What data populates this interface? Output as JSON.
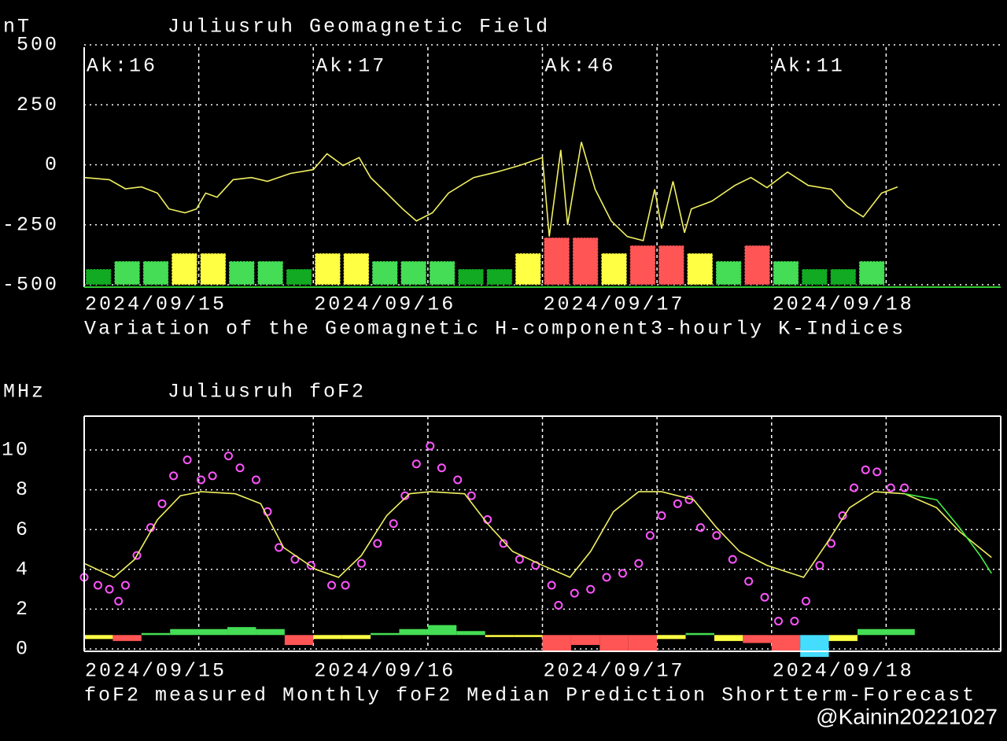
{
  "chart_data": [
    {
      "type": "line",
      "title": "Juliusruh Geomagnetic Field",
      "y_label": "nT",
      "annotations": [
        "Ak:16",
        "Ak:17",
        "Ak:46",
        "Ak:11"
      ],
      "xlim": [
        0,
        4
      ],
      "xticks": [
        {
          "value": 0,
          "label": "2024/09/15"
        },
        {
          "value": 1,
          "label": "2024/09/16"
        },
        {
          "value": 2,
          "label": "2024/09/17"
        },
        {
          "value": 3,
          "label": "2024/09/18"
        }
      ],
      "ylim": [
        -500,
        500
      ],
      "yticks": [
        -500,
        -250,
        0,
        250,
        500
      ],
      "grid": true,
      "series": [
        {
          "name": "Variation of the Geomagnetic H-component",
          "type": "line",
          "color": "#f0f060",
          "x": [
            0,
            0.11,
            0.18,
            0.25,
            0.32,
            0.37,
            0.44,
            0.49,
            0.53,
            0.58,
            0.65,
            0.73,
            0.8,
            0.9,
            1.0,
            1.06,
            1.13,
            1.2,
            1.25,
            1.32,
            1.39,
            1.45,
            1.52,
            1.59,
            1.7,
            1.8,
            1.9,
            2.0,
            2.03,
            2.08,
            2.11,
            2.17,
            2.23,
            2.3,
            2.37,
            2.44,
            2.49,
            2.52,
            2.57,
            2.62,
            2.65,
            2.74,
            2.84,
            2.91,
            2.98,
            3.07,
            3.16,
            3.26,
            3.33,
            3.4,
            3.48,
            3.55
          ],
          "values": [
            -53,
            -62,
            -100,
            -92,
            -118,
            -184,
            -200,
            -184,
            -118,
            -135,
            -62,
            -53,
            -69,
            -36,
            -20,
            46,
            -3,
            30,
            -53,
            -118,
            -184,
            -234,
            -200,
            -118,
            -53,
            -30,
            -3,
            30,
            -299,
            62,
            -250,
            95,
            -102,
            -234,
            -299,
            -316,
            -102,
            -266,
            -69,
            -283,
            -184,
            -151,
            -86,
            -53,
            -95,
            -30,
            -86,
            -102,
            -174,
            -217,
            -118,
            -92
          ]
        },
        {
          "name": "3-hourly K-Indices",
          "type": "bar",
          "color": "#44ee44",
          "x": [
            0,
            0.125,
            0.25,
            0.375,
            0.5,
            0.625,
            0.75,
            0.875,
            1,
            1.125,
            1.25,
            1.375,
            1.5,
            1.625,
            1.75,
            1.875,
            2,
            2.125,
            2.25,
            2.375,
            2.5,
            2.625,
            2.75,
            2.875,
            3,
            3.125,
            3.25,
            3.375
          ],
          "values": [
            2,
            3,
            3,
            4,
            4,
            3,
            3,
            2,
            4,
            4,
            3,
            3,
            3,
            2,
            2,
            4,
            6,
            6,
            4,
            5,
            5,
            4,
            3,
            5,
            3,
            2,
            2,
            3
          ],
          "colors": [
            "#11aa22",
            "#44dd55",
            "#44dd55",
            "#ffff44",
            "#ffff44",
            "#44dd55",
            "#44dd55",
            "#11aa22",
            "#ffff44",
            "#ffff44",
            "#44dd55",
            "#44dd55",
            "#44dd55",
            "#11aa22",
            "#11aa22",
            "#ffff44",
            "#ff5555",
            "#ff5555",
            "#ffff44",
            "#ff5555",
            "#ff5555",
            "#ffff44",
            "#44dd55",
            "#ff5555",
            "#44dd55",
            "#11aa22",
            "#11aa22",
            "#44dd55"
          ]
        }
      ]
    },
    {
      "type": "line",
      "title": "Juliusruh foF2",
      "y_label": "MHz",
      "xlim": [
        0,
        4
      ],
      "xticks": [
        {
          "value": 0,
          "label": "2024/09/15"
        },
        {
          "value": 1,
          "label": "2024/09/16"
        },
        {
          "value": 2,
          "label": "2024/09/17"
        },
        {
          "value": 3,
          "label": "2024/09/18"
        }
      ],
      "ylim": [
        0,
        11.7
      ],
      "yticks": [
        0,
        2,
        4,
        6,
        8,
        10
      ],
      "grid": true,
      "series": [
        {
          "name": "foF2 measured",
          "type": "scatter",
          "color": "#ff55ff",
          "x": [
            0,
            0.06,
            0.11,
            0.15,
            0.18,
            0.23,
            0.29,
            0.34,
            0.39,
            0.45,
            0.51,
            0.56,
            0.63,
            0.68,
            0.75,
            0.8,
            0.85,
            0.92,
            0.99,
            1.08,
            1.14,
            1.21,
            1.28,
            1.35,
            1.4,
            1.45,
            1.51,
            1.56,
            1.63,
            1.69,
            1.76,
            1.83,
            1.9,
            1.97,
            2.04,
            2.07,
            2.14,
            2.21,
            2.28,
            2.35,
            2.42,
            2.47,
            2.52,
            2.59,
            2.64,
            2.69,
            2.76,
            2.83,
            2.9,
            2.97,
            3.03,
            3.1,
            3.15,
            3.21,
            3.26,
            3.31,
            3.36,
            3.41,
            3.46,
            3.52,
            3.58
          ],
          "values": [
            3.6,
            3.2,
            3.0,
            2.4,
            3.2,
            4.7,
            6.1,
            7.3,
            8.7,
            9.5,
            8.5,
            8.7,
            9.7,
            9.1,
            8.5,
            6.9,
            5.1,
            4.5,
            4.2,
            3.2,
            3.2,
            4.3,
            5.3,
            6.3,
            7.7,
            9.3,
            10.2,
            9.1,
            8.5,
            7.7,
            6.5,
            5.3,
            4.5,
            4.2,
            3.2,
            2.2,
            2.8,
            3.0,
            3.6,
            3.8,
            4.3,
            5.7,
            6.7,
            7.3,
            7.5,
            6.1,
            5.7,
            4.5,
            3.4,
            2.6,
            1.4,
            1.4,
            2.4,
            4.2,
            5.3,
            6.7,
            8.1,
            9.0,
            8.9,
            8.1,
            8.1
          ]
        },
        {
          "name": "Monthly foF2 Median Prediction",
          "type": "line",
          "color": "#f0f060",
          "x": [
            0,
            0.13,
            0.22,
            0.32,
            0.42,
            0.51,
            0.66,
            0.77,
            0.87,
            1.01,
            1.11,
            1.21,
            1.32,
            1.42,
            1.51,
            1.66,
            1.76,
            1.87,
            2.0,
            2.12,
            2.21,
            2.31,
            2.42,
            2.52,
            2.66,
            2.76,
            2.86,
            2.98,
            3.14,
            3.24,
            3.34,
            3.45,
            3.58,
            3.72,
            3.82,
            3.96
          ],
          "values": [
            4.3,
            3.6,
            4.5,
            6.5,
            7.7,
            7.9,
            7.8,
            7.3,
            5.1,
            4.0,
            3.6,
            4.7,
            6.7,
            7.8,
            7.9,
            7.8,
            6.3,
            4.9,
            4.2,
            3.6,
            4.9,
            6.9,
            7.9,
            7.9,
            7.5,
            6.1,
            4.9,
            4.2,
            3.6,
            5.3,
            7.1,
            7.9,
            7.8,
            7.1,
            5.9,
            4.6
          ]
        },
        {
          "name": "Shortterm-Forecast",
          "type": "line",
          "color": "#44ee44",
          "x": [
            3.58,
            3.72,
            3.82,
            3.91,
            3.96
          ],
          "values": [
            7.8,
            7.5,
            6.1,
            4.7,
            3.8
          ]
        }
      ],
      "deviation": {
        "base": 0.7,
        "x": [
          0,
          0.125,
          0.25,
          0.375,
          0.5,
          0.625,
          0.75,
          0.875,
          1,
          1.125,
          1.25,
          1.375,
          1.5,
          1.625,
          1.75,
          1.875,
          2,
          2.125,
          2.25,
          2.375,
          2.5,
          2.625,
          2.75,
          2.875,
          3,
          3.125,
          3.25,
          3.375,
          3.5
        ],
        "values": [
          -0.2,
          -0.3,
          0.1,
          0.3,
          0.3,
          0.4,
          0.3,
          -0.5,
          -0.2,
          -0.2,
          0.1,
          0.3,
          0.5,
          0.2,
          -0.1,
          -0.1,
          -0.8,
          -0.5,
          -0.8,
          -0.8,
          -0.2,
          0.1,
          -0.3,
          -0.4,
          -0.8,
          -1.1,
          -0.3,
          0.3,
          0.3
        ],
        "colors": [
          "#ffff44",
          "#ff5555",
          "#44dd55",
          "#44dd55",
          "#44dd55",
          "#44dd55",
          "#44dd55",
          "#ff5555",
          "#ffff44",
          "#ffff44",
          "#44dd55",
          "#44dd55",
          "#44dd55",
          "#44dd55",
          "#ffff44",
          "#ffff44",
          "#ff5555",
          "#ff5555",
          "#ff5555",
          "#ff5555",
          "#ffff44",
          "#44dd55",
          "#ffff44",
          "#ff5555",
          "#ff5555",
          "#44ddff",
          "#ffff44",
          "#44dd55",
          "#44dd55"
        ]
      }
    }
  ],
  "watermark": "@Kainin20221027"
}
